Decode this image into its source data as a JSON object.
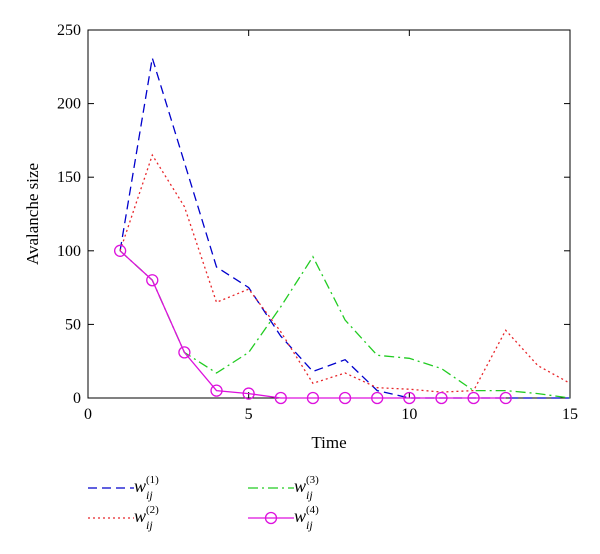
{
  "chart_data": {
    "type": "line",
    "title": "",
    "xlabel": "Time",
    "ylabel": "Avalanche size",
    "xlim": [
      0,
      15
    ],
    "ylim": [
      0,
      250
    ],
    "xticks": [
      "0",
      "5",
      "10",
      "15"
    ],
    "yticks": [
      "0",
      "50",
      "100",
      "150",
      "200",
      "250"
    ],
    "grid": false,
    "legend_position": "bottom",
    "series": [
      {
        "name": "w_ij^(1)",
        "legend_base": "w",
        "legend_sub": "ij",
        "legend_sup": "(1)",
        "color": "#0000cc",
        "style": "dashed",
        "marker": "none",
        "x": [
          1,
          2,
          3,
          4,
          5,
          6,
          7,
          8,
          9,
          10,
          11,
          12,
          13,
          14,
          15
        ],
        "y": [
          100,
          231,
          160,
          89,
          75,
          42,
          18,
          26,
          5,
          0,
          0,
          0,
          0,
          0,
          0
        ]
      },
      {
        "name": "w_ij^(2)",
        "legend_base": "w",
        "legend_sub": "ij",
        "legend_sup": "(2)",
        "color": "#e8262a",
        "style": "dotted",
        "marker": "none",
        "x": [
          1,
          2,
          3,
          4,
          5,
          6,
          7,
          8,
          9,
          10,
          11,
          12,
          13,
          14,
          15
        ],
        "y": [
          100,
          165,
          130,
          65,
          74,
          45,
          10,
          17,
          7,
          6,
          4,
          5,
          46,
          22,
          10
        ]
      },
      {
        "name": "w_ij^(3)",
        "legend_base": "w",
        "legend_sub": "ij",
        "legend_sup": "(3)",
        "color": "#22cc22",
        "style": "dashdot",
        "marker": "none",
        "x": [
          1,
          2,
          3,
          4,
          5,
          6,
          7,
          8,
          9,
          10,
          11,
          12,
          13,
          14,
          15
        ],
        "y": [
          100,
          80,
          31,
          17,
          31,
          62,
          96,
          53,
          29,
          27,
          20,
          5,
          5,
          3,
          0
        ]
      },
      {
        "name": "w_ij^(4)",
        "legend_base": "w",
        "legend_sub": "ij",
        "legend_sup": "(4)",
        "color": "#dd11dd",
        "style": "solid",
        "marker": "circle",
        "x": [
          1,
          2,
          3,
          4,
          5,
          6,
          7,
          8,
          9,
          10,
          11,
          12,
          13
        ],
        "y": [
          100,
          80,
          31,
          5,
          3,
          0,
          0,
          0,
          0,
          0,
          0,
          0,
          0
        ]
      }
    ]
  }
}
